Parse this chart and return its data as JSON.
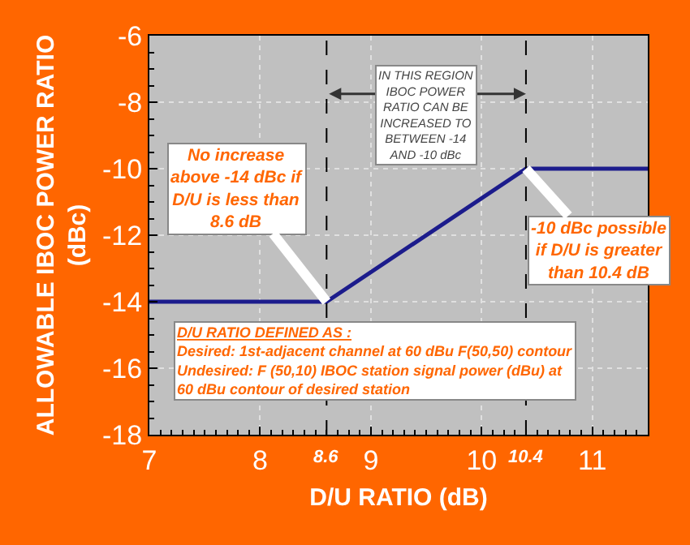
{
  "chart_data": {
    "type": "line",
    "xlabel": "D/U RATIO (dB)",
    "ylabel": "ALLOWABLE IBOC POWER RATIO\n(dBc)",
    "x": [
      7,
      8.6,
      10.4,
      11.5
    ],
    "series": [
      {
        "color": "#1c1c8c",
        "values": [
          -14,
          -14,
          -10,
          -10
        ]
      }
    ],
    "xlim": [
      7,
      11.5
    ],
    "xticks": [
      7,
      8,
      9,
      10,
      11
    ],
    "ylim": [
      -18,
      -6
    ],
    "yticks": [
      -18,
      -16,
      -14,
      -12,
      -10,
      -8,
      -6
    ],
    "grid": true,
    "marker": "none",
    "line_style": "solid",
    "ref_lines": [
      {
        "axis": "x",
        "value": 8.6,
        "label": "8.6",
        "line_style": "dashed",
        "color": "#000000"
      },
      {
        "axis": "x",
        "value": 10.4,
        "label": "10.4",
        "line_style": "dashed",
        "color": "#000000"
      }
    ],
    "annotations": [
      {
        "text": "No increase\nabove -14 dBc if\nD/U is less than\n8.6 dB",
        "x": 8.6,
        "y": -14
      },
      {
        "text": "-10 dBc possible\nif D/U is greater\nthan 10.4 dB",
        "x": 10.4,
        "y": -10
      },
      "IN THIS REGION\nIBOC POWER\nRATIO CAN BE\nINCREASED TO\nBETWEEN -14\nAND -10 dBc",
      "D/U RATIO DEFINED AS :\nDesired: 1st-adjacent channel at 60 dBu F(50,50) contour\nUndesired: F (50,10) IBOC station signal power (dBu) at\n60 dBu contour of desired station"
    ]
  }
}
